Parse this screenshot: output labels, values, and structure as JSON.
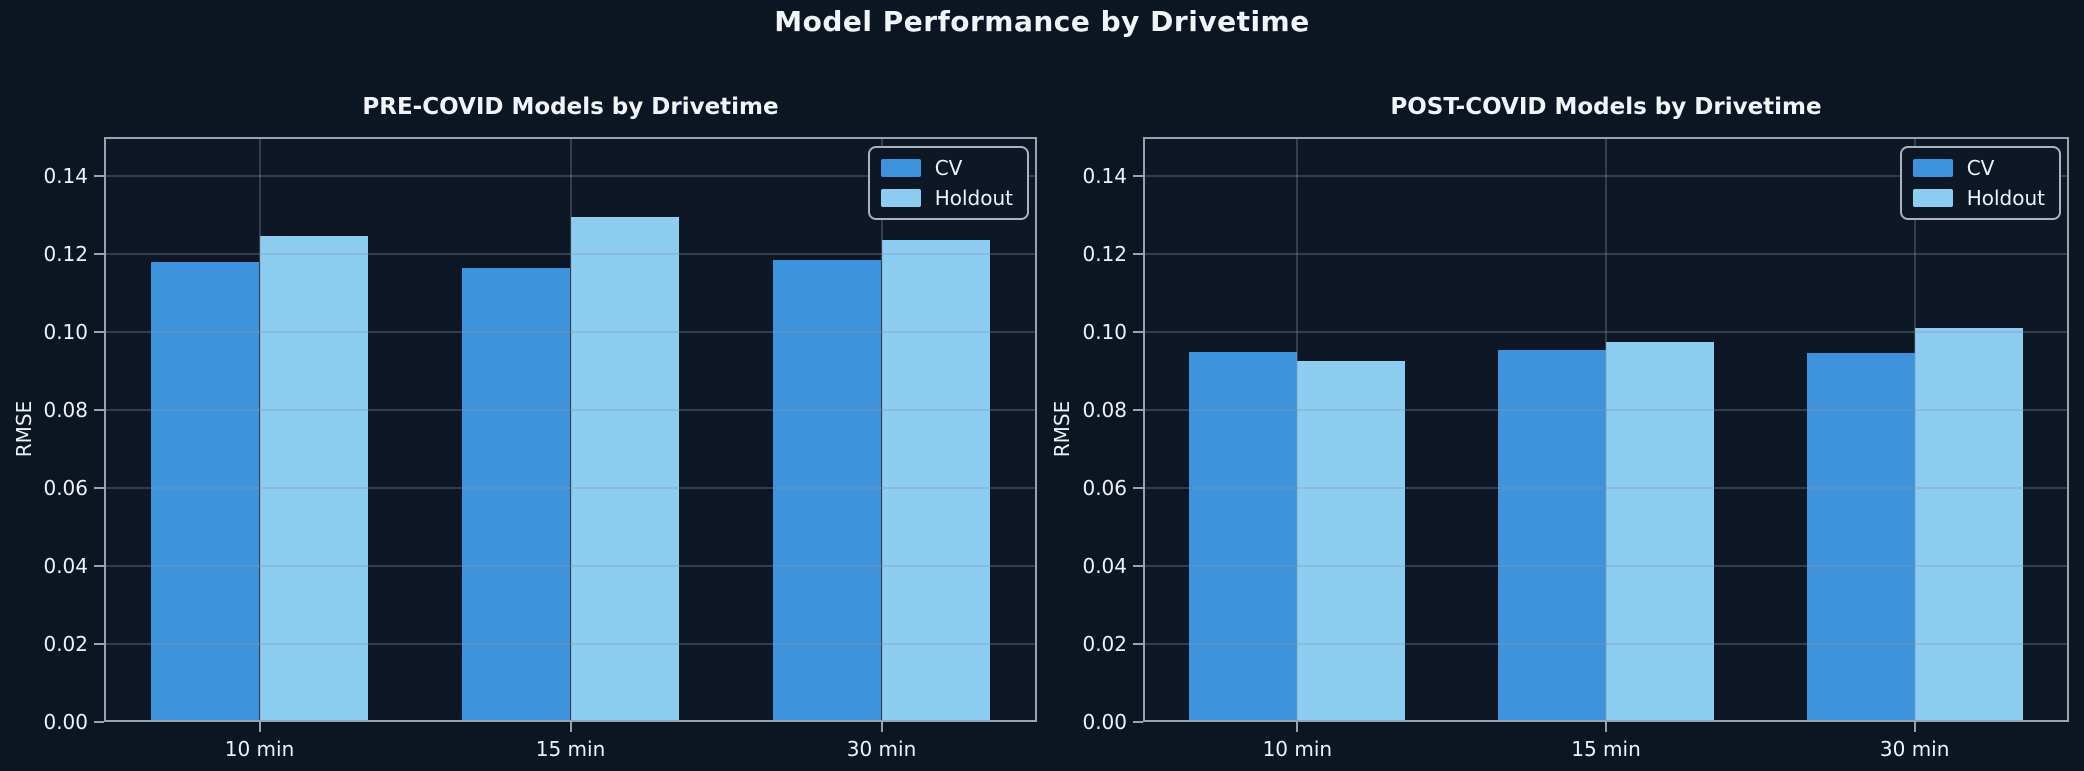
{
  "figure": {
    "title": "Model Performance by Drivetime"
  },
  "colors": {
    "background": "#0c1522",
    "axes_background": "#0d1726",
    "cv": "#3f93dc",
    "holdout": "#8ecdf2",
    "spine": "#98a2b0",
    "grid": "rgba(130,148,168,0.32)",
    "text": "#eef2f7"
  },
  "chart_data": [
    {
      "type": "bar",
      "title": "PRE-COVID Models by Drivetime",
      "ylabel": "RMSE",
      "categories": [
        "10 min",
        "15 min",
        "30 min"
      ],
      "series": [
        {
          "name": "CV",
          "color_key": "cv",
          "values": [
            0.118,
            0.1165,
            0.1185
          ]
        },
        {
          "name": "Holdout",
          "color_key": "holdout",
          "values": [
            0.1245,
            0.1295,
            0.1235
          ]
        }
      ],
      "ylim": [
        0,
        0.15
      ],
      "yticks": [
        0,
        0.02,
        0.04,
        0.06,
        0.08,
        0.1,
        0.12,
        0.14
      ],
      "bar_width": 0.35,
      "grid": true,
      "legend_position": "upper-right"
    },
    {
      "type": "bar",
      "title": "POST-COVID Models by Drivetime",
      "ylabel": "RMSE",
      "categories": [
        "10 min",
        "15 min",
        "30 min"
      ],
      "series": [
        {
          "name": "CV",
          "color_key": "cv",
          "values": [
            0.095,
            0.0955,
            0.0945
          ]
        },
        {
          "name": "Holdout",
          "color_key": "holdout",
          "values": [
            0.0925,
            0.0975,
            0.101
          ]
        }
      ],
      "ylim": [
        0,
        0.15
      ],
      "yticks": [
        0,
        0.02,
        0.04,
        0.06,
        0.08,
        0.1,
        0.12,
        0.14
      ],
      "bar_width": 0.35,
      "grid": true,
      "legend_position": "upper-right"
    }
  ]
}
